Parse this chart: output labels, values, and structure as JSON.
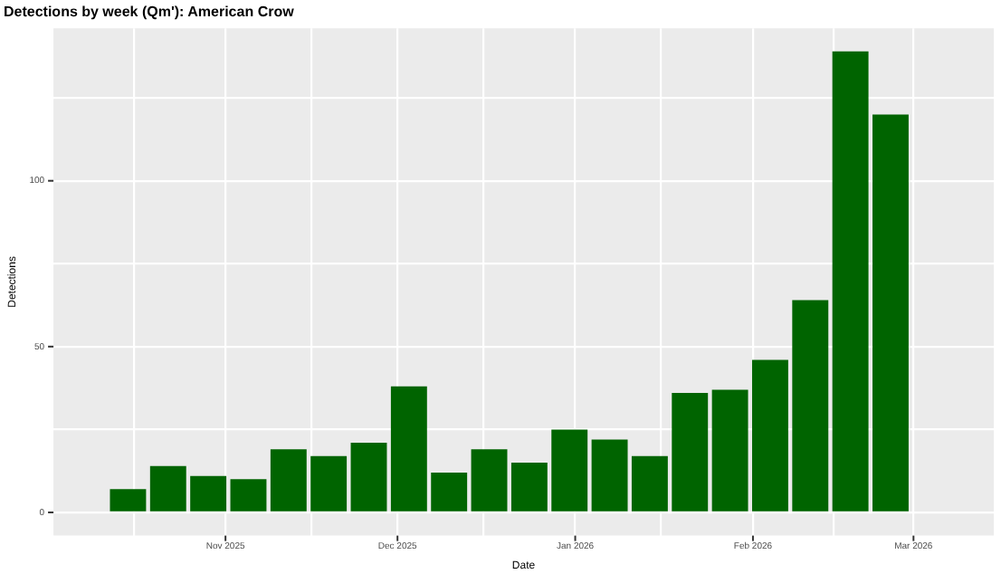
{
  "chart_data": {
    "type": "bar",
    "title": "Detections by week (Qm'): American Crow",
    "xlabel": "Date",
    "ylabel": "Detections",
    "x": [
      "2025-10-15",
      "2025-10-22",
      "2025-10-29",
      "2025-11-05",
      "2025-11-12",
      "2025-11-19",
      "2025-11-26",
      "2025-12-03",
      "2025-12-10",
      "2025-12-17",
      "2025-12-24",
      "2025-12-31",
      "2026-01-07",
      "2026-01-14",
      "2026-01-21",
      "2026-01-28",
      "2026-02-04",
      "2026-02-11",
      "2026-02-18",
      "2026-02-25"
    ],
    "series": [
      {
        "color": "#006400",
        "values": [
          7,
          14,
          11,
          10,
          19,
          17,
          21,
          38,
          12,
          19,
          15,
          25,
          22,
          17,
          36,
          37,
          46,
          64,
          139,
          120
        ]
      }
    ],
    "xlim": [
      "2025-10-02",
      "2026-03-15"
    ],
    "xticks": [
      {
        "value": "2025-10-16",
        "label": null
      },
      {
        "value": "2025-11-01",
        "label": "Nov 2025"
      },
      {
        "value": "2025-11-16",
        "label": null
      },
      {
        "value": "2025-12-01",
        "label": "Dec 2025"
      },
      {
        "value": "2025-12-16",
        "label": null
      },
      {
        "value": "2026-01-01",
        "label": "Jan 2026"
      },
      {
        "value": "2026-01-16",
        "label": null
      },
      {
        "value": "2026-02-01",
        "label": "Feb 2026"
      },
      {
        "value": "2026-02-15",
        "label": null
      },
      {
        "value": "2026-03-01",
        "label": "Mar 2026"
      }
    ],
    "ylim": [
      -7,
      146
    ],
    "yticks": [
      {
        "value": 25,
        "label": null
      },
      {
        "value": 75,
        "label": null
      },
      {
        "value": 125,
        "label": null
      },
      0,
      50,
      100
    ],
    "grid": true,
    "legend": false
  }
}
